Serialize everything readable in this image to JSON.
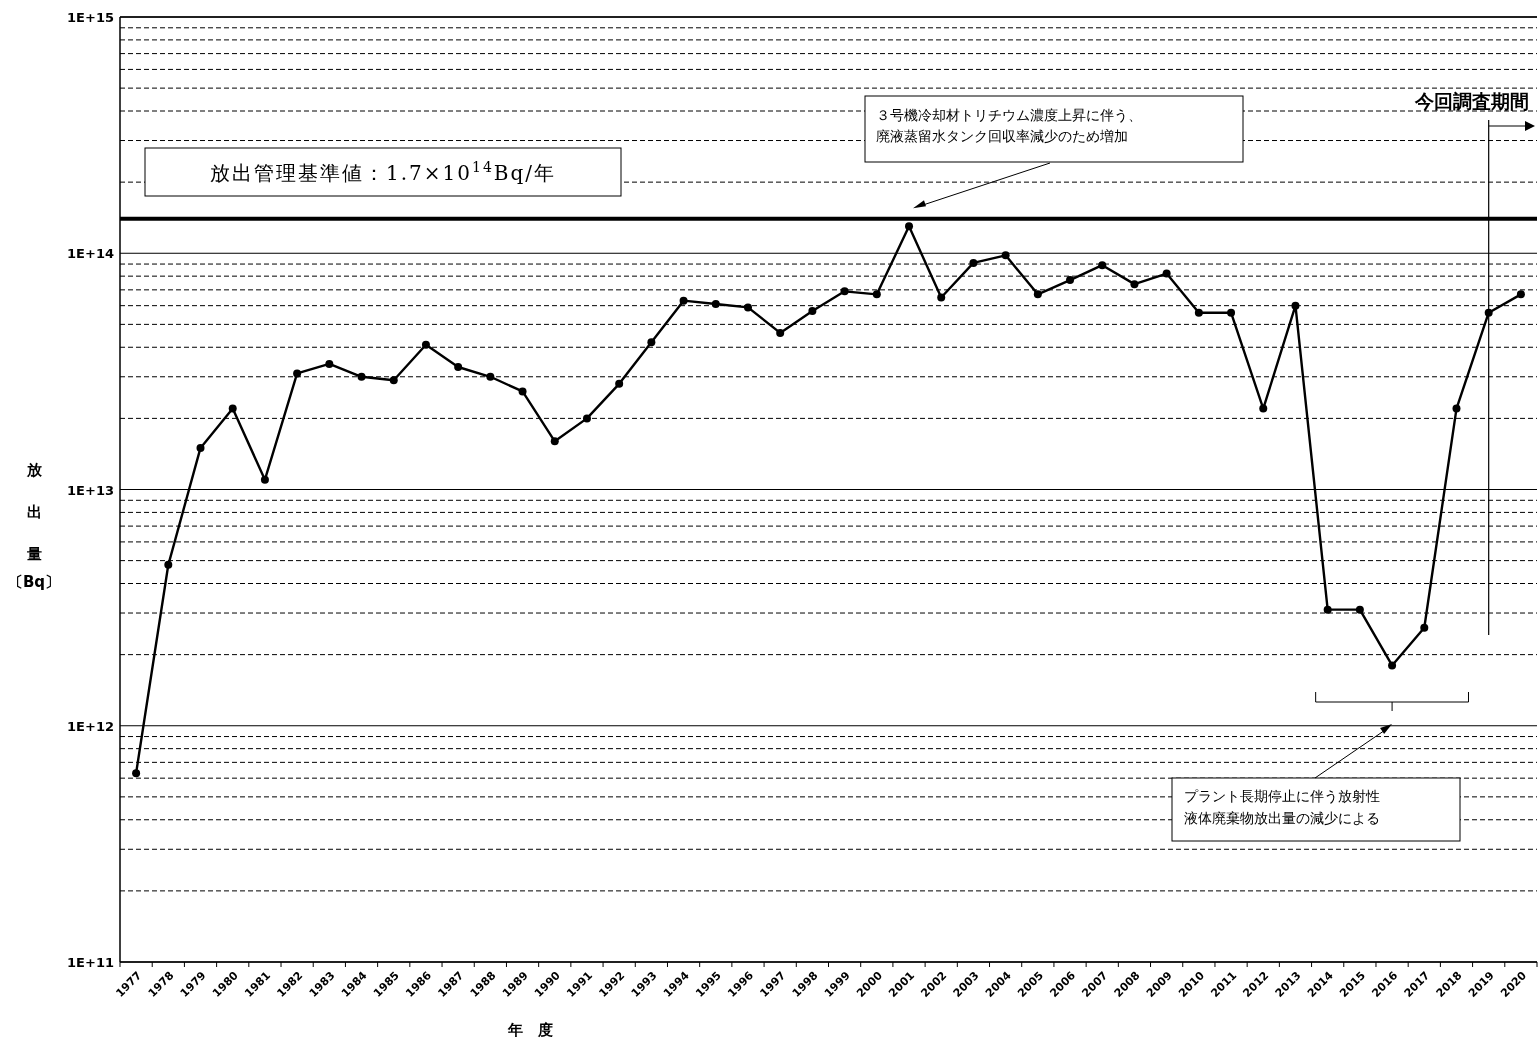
{
  "chart_data": {
    "type": "line",
    "xlabel": "年　度",
    "ylabel": "放出量〔Bq〕",
    "categories": [
      "1977",
      "1978",
      "1979",
      "1980",
      "1981",
      "1982",
      "1983",
      "1984",
      "1985",
      "1986",
      "1987",
      "1988",
      "1989",
      "1990",
      "1991",
      "1992",
      "1993",
      "1994",
      "1995",
      "1996",
      "1997",
      "1998",
      "1999",
      "2000",
      "2001",
      "2002",
      "2003",
      "2004",
      "2005",
      "2006",
      "2007",
      "2008",
      "2009",
      "2010",
      "2011",
      "2012",
      "2013",
      "2014",
      "2015",
      "2016",
      "2017",
      "2018",
      "2019",
      "2020"
    ],
    "series": [
      {
        "color": "#000000",
        "values": [
          630000000000.0,
          4800000000000.0,
          15000000000000.0,
          22000000000000.0,
          11000000000000.0,
          31000000000000.0,
          34000000000000.0,
          30000000000000.0,
          29000000000000.0,
          41000000000000.0,
          33000000000000.0,
          30000000000000.0,
          26000000000000.0,
          16000000000000.0,
          20000000000000.0,
          28000000000000.0,
          42000000000000.0,
          63000000000000.0,
          61000000000000.0,
          59000000000000.0,
          46000000000000.0,
          57000000000000.0,
          69000000000000.0,
          67000000000000.0,
          130000000000000.0,
          65000000000000.0,
          91000000000000.0,
          98000000000000.0,
          67000000000000.0,
          77000000000000.0,
          89000000000000.0,
          74000000000000.0,
          82000000000000.0,
          56000000000000.0,
          56000000000000.0,
          22000000000000.0,
          60000000000000.0,
          3100000000000.0,
          3100000000000.0,
          1800000000000.0,
          2600000000000.0,
          22000000000000.0,
          56000000000000.0,
          67000000000000.0
        ]
      }
    ],
    "log": "y",
    "ylim": [
      100000000000.0,
      1000000000000000.0
    ],
    "yticks": [
      {
        "value": 100000000000.0,
        "label": "1E+11"
      },
      {
        "value": 1000000000000.0,
        "label": "1E+12"
      },
      {
        "value": 10000000000000.0,
        "label": "1E+13"
      },
      {
        "value": 100000000000000.0,
        "label": "1E+14"
      },
      {
        "value": 1000000000000000.0,
        "label": "1E+15"
      }
    ],
    "grid": "y",
    "marker": "circle",
    "line_style": "solid",
    "ref_lines": [
      {
        "axis": "y",
        "value": 140000000000000.0,
        "label": "放出管理基準値：1.7×10$^{14}$Bq/年",
        "color": "#000000"
      },
      {
        "axis": "x",
        "value": "2019",
        "label": "今回調査期間",
        "color": "#000000"
      }
    ],
    "annotations": [
      "３号機冷却材トリチウム濃度上昇に伴う、廃液蒸留水タンク回収率減少のため増加",
      "プラント長期停止に伴う放射性液体廃棄物放出量の減少による"
    ]
  }
}
